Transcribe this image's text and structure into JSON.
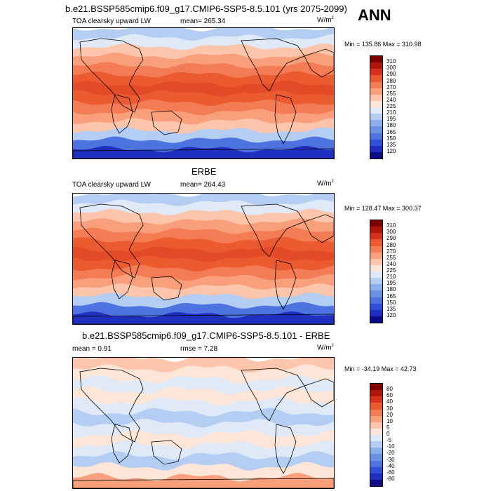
{
  "header": {
    "title": "b.e21.BSSP585cmip6.f09_g17.CMIP6-SSP5-8.5.101 (yrs 2075-2099)",
    "season": "ANN"
  },
  "panels": [
    {
      "variable": "TOA clearsky upward LW",
      "mean_text": "mean= 265.34",
      "units_base": "W/m",
      "units_exp": "2",
      "stats": "Min = 135.86 Max = 310.98"
    },
    {
      "title": "ERBE",
      "variable": "TOA clearsky upward LW",
      "mean_text": "mean= 264.43",
      "units_base": "W/m",
      "units_exp": "2",
      "stats": "Min = 128.47 Max = 300.37"
    },
    {
      "title": "b.e21.BSSP585cmip6.f09_g17.CMIP6-SSP5-8.5.101 - ERBE",
      "mean_text": "mean =   0.91",
      "rmse_text": "rmse =   7.28",
      "units_base": "W/m",
      "units_exp": "2",
      "stats": "Min = -34.19 Max =  42.73"
    }
  ],
  "colorbars": {
    "absolute": {
      "labels": [
        "310",
        "300",
        "290",
        "280",
        "270",
        "255",
        "240",
        "225",
        "210",
        "195",
        "180",
        "165",
        "150",
        "135",
        "120"
      ],
      "colors": [
        "#7f0000",
        "#b0150a",
        "#d7301f",
        "#ec5a2f",
        "#f47c55",
        "#f99f7c",
        "#fcc5ac",
        "#fde6d8",
        "#dfe9f7",
        "#b4cdf2",
        "#8cb0ec",
        "#6a93e6",
        "#4c73e0",
        "#2f4fd6",
        "#1f2fc0",
        "#0c0d86"
      ]
    },
    "difference": {
      "labels": [
        "80",
        "60",
        "40",
        "30",
        "20",
        "10",
        "5",
        "0",
        "-5",
        "-10",
        "-20",
        "-30",
        "-40",
        "-60",
        "-80"
      ],
      "colors": [
        "#7f0000",
        "#b0150a",
        "#d7301f",
        "#ec5a2f",
        "#f47c55",
        "#f99f7c",
        "#fcc5ac",
        "#fde6d8",
        "#dfe9f7",
        "#b4cdf2",
        "#8cb0ec",
        "#6a93e6",
        "#4c73e0",
        "#2f4fd6",
        "#1f2fc0",
        "#0c0d86"
      ]
    }
  },
  "map_colors": {
    "absolute_bands": [
      "#b4cdf2",
      "#dfe9f7",
      "#fcc5ac",
      "#f99f7c",
      "#f47c55",
      "#ec5a2f",
      "#e24a28",
      "#ec5a2f",
      "#f47c55",
      "#f99f7c",
      "#fcc5ac",
      "#b4cdf2",
      "#4c73e0",
      "#1f2fc0"
    ],
    "difference_bands": [
      "#fcc5ac",
      "#fde6d8",
      "#dfe9f7",
      "#fde6d8",
      "#dfe9f7",
      "#b4cdf2",
      "#dfe9f7",
      "#fde6d8",
      "#dfe9f7",
      "#b4cdf2",
      "#fde6d8",
      "#f99f7c"
    ],
    "coastline": "#000000"
  }
}
